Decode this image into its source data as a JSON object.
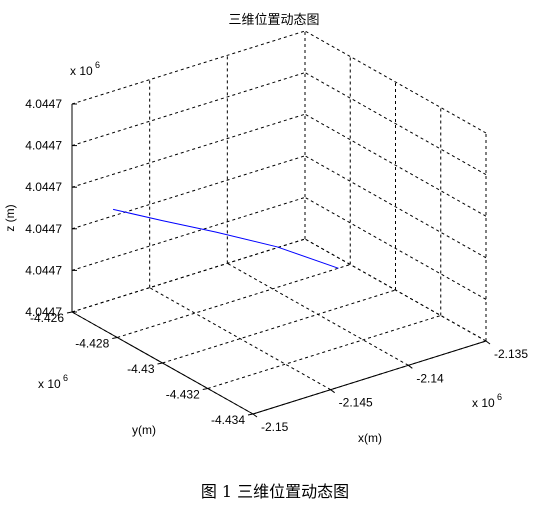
{
  "chart_data": {
    "type": "line3d",
    "title": "三维位置动态图",
    "xlabel": "x(m)",
    "ylabel": "y(m)",
    "zlabel": "z (m)",
    "x_multiplier": "x 10",
    "x_multiplier_exp": "6",
    "y_multiplier": "x 10",
    "y_multiplier_exp": "6",
    "z_multiplier": "x 10",
    "z_multiplier_exp": "6",
    "x_ticks": [
      "-2.15",
      "-2.145",
      "-2.14",
      "-2.135"
    ],
    "y_ticks": [
      "-4.426",
      "-4.428",
      "-4.43",
      "-4.432",
      "-4.434"
    ],
    "z_ticks": [
      "4.0447",
      "4.0447",
      "4.0447",
      "4.0447",
      "4.0447",
      "4.0447"
    ],
    "xlim": [
      -2.15,
      -2.135
    ],
    "ylim": [
      -4.434,
      -4.426
    ],
    "zlim": [
      0,
      5
    ],
    "grid": true,
    "series": [
      {
        "color": "#0000ff",
        "x": [
          -2.1491,
          -2.1471,
          -2.1448,
          -2.1422,
          -2.1394
        ],
        "y": [
          -4.4272,
          -4.428,
          -4.4288,
          -4.4297,
          -4.4305
        ],
        "z": [
          2.73,
          2.47,
          2.17,
          1.79,
          1.19
        ]
      }
    ]
  },
  "caption": "图 1  三维位置动态图"
}
